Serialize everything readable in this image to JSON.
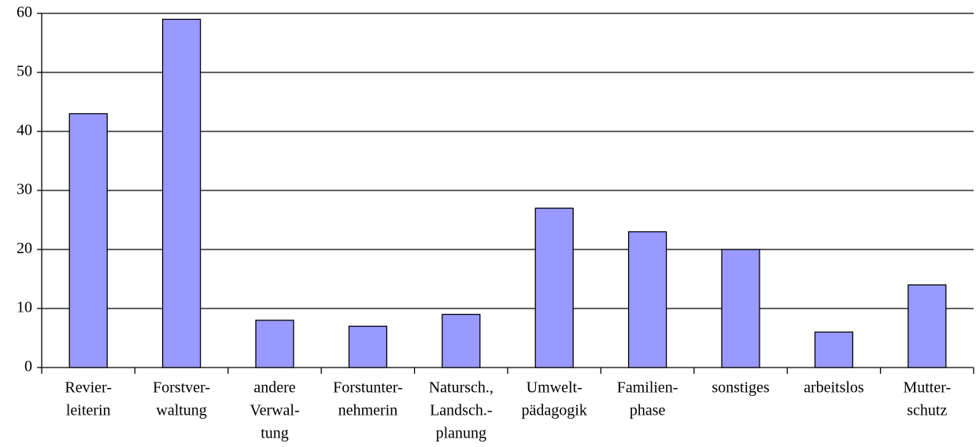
{
  "chart_data": {
    "type": "bar",
    "categories": [
      [
        "Revier-",
        "leiterin"
      ],
      [
        "Forstver-",
        "waltung"
      ],
      [
        "andere",
        "Verwal-",
        "tung"
      ],
      [
        "Forstunter-",
        "nehmerin"
      ],
      [
        "Natursch.,",
        "Landsch.-",
        "planung"
      ],
      [
        "Umwelt-",
        "pädagogik"
      ],
      [
        "Familien-",
        "phase"
      ],
      [
        "sonstiges"
      ],
      [
        "arbeitslos"
      ],
      [
        "Mutter-",
        "schutz"
      ]
    ],
    "values": [
      43,
      59,
      8,
      7,
      9,
      27,
      23,
      20,
      6,
      14
    ],
    "color": "#9999ff",
    "ylim": [
      0,
      60
    ],
    "yticks": [
      0,
      10,
      20,
      30,
      40,
      50,
      60
    ],
    "grid": true
  }
}
